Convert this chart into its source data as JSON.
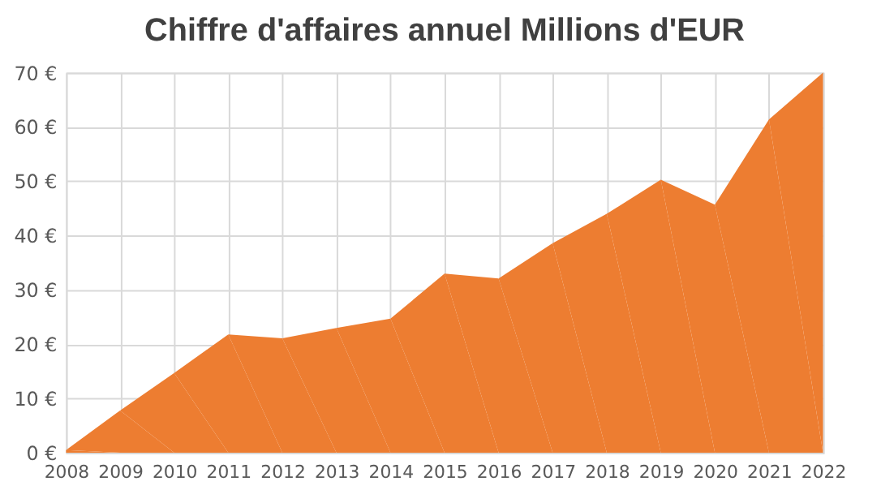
{
  "chart_data": {
    "type": "area",
    "title": "Chiffre d'affaires annuel Millions d'EUR",
    "categories": [
      "2008",
      "2009",
      "2010",
      "2011",
      "2012",
      "2013",
      "2014",
      "2015",
      "2016",
      "2017",
      "2018",
      "2019",
      "2020",
      "2021",
      "2022"
    ],
    "series": [
      {
        "color": "#ed7d31",
        "values": [
          0.5,
          7.8,
          14.7,
          21.8,
          21.1,
          23.0,
          24.7,
          33.0,
          32.1,
          38.6,
          44.0,
          50.3,
          45.7,
          61.4,
          70
        ]
      }
    ],
    "ylim": [
      0,
      70
    ],
    "yticks": [
      {
        "value": 0,
        "label": "0 €"
      },
      {
        "value": 10,
        "label": "10 €"
      },
      {
        "value": 20,
        "label": "20 €"
      },
      {
        "value": 30,
        "label": "30 €"
      },
      {
        "value": 40,
        "label": "40 €"
      },
      {
        "value": 50,
        "label": "50 €"
      },
      {
        "value": 60,
        "label": "60 €"
      },
      {
        "value": 70,
        "label": "70 €"
      }
    ],
    "grid": true
  }
}
